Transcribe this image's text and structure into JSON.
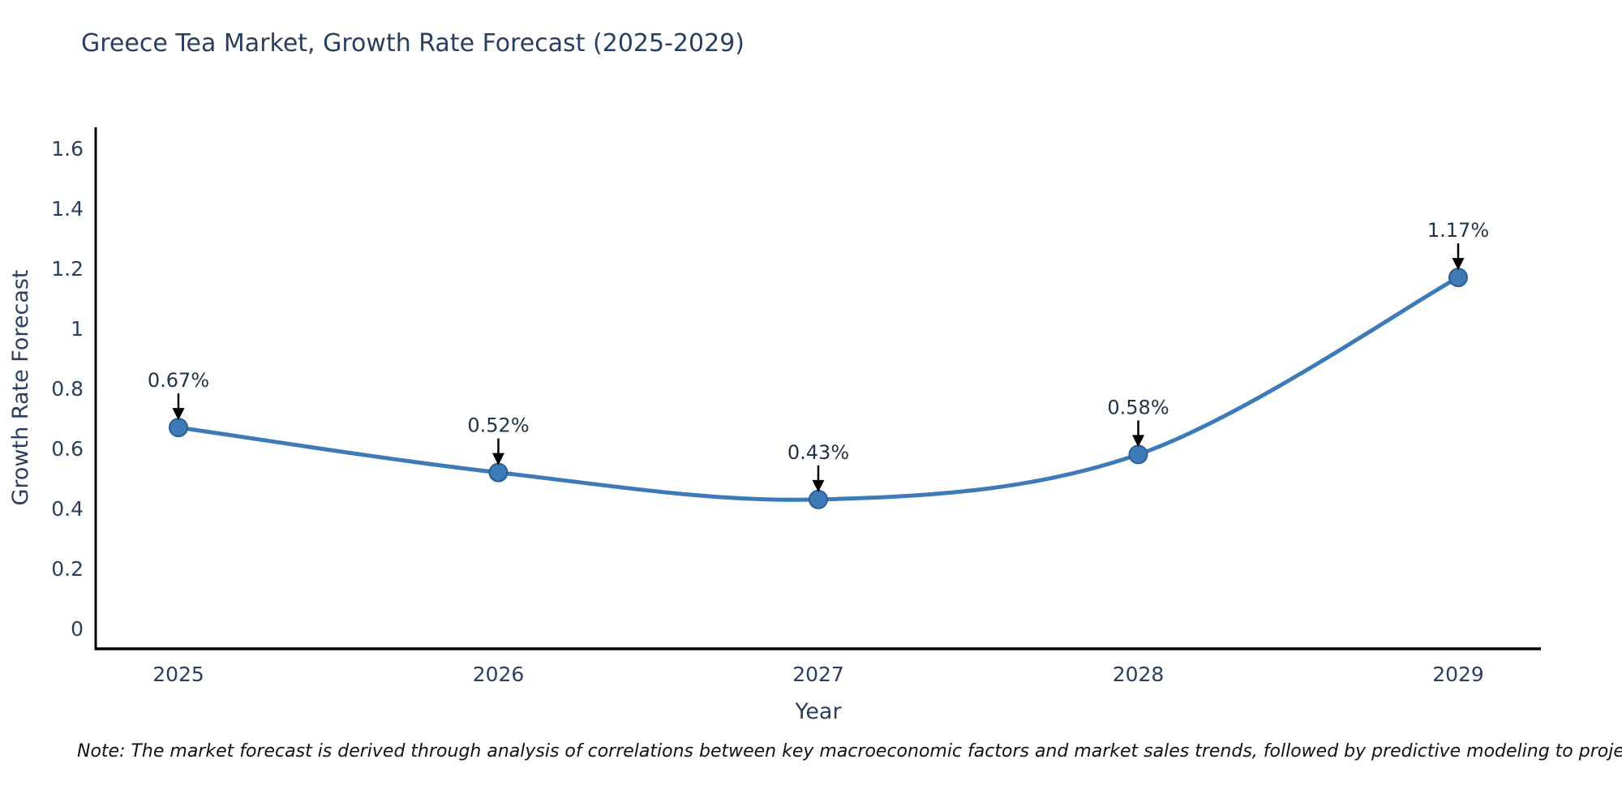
{
  "page": {
    "background": "#ffffff"
  },
  "chart_data": {
    "type": "line",
    "title": "Greece Tea Market, Growth Rate Forecast (2025-2029)",
    "xlabel": "Year",
    "ylabel": "Growth Rate Forecast",
    "categories": [
      "2025",
      "2026",
      "2027",
      "2028",
      "2029"
    ],
    "values": [
      0.67,
      0.52,
      0.43,
      0.58,
      1.17
    ],
    "point_labels": [
      "0.67%",
      "0.52%",
      "0.43%",
      "0.58%",
      "1.17%"
    ],
    "ytick_labels": [
      "0",
      "0.2",
      "0.4",
      "0.6",
      "0.8",
      "1",
      "1.2",
      "1.4",
      "1.6"
    ],
    "yticks": [
      0,
      0.2,
      0.4,
      0.6,
      0.8,
      1.0,
      1.2,
      1.4,
      1.6
    ],
    "ylim": [
      -0.07,
      1.67
    ],
    "grid": false,
    "legend_position": "none",
    "line_color": "#3d7ab8",
    "marker_color": "#3d7ab8",
    "marker_edge_color": "#2c5f94",
    "axis_color": "#000000",
    "text_color": "#2a3f5f",
    "annotation_arrow_color": "#000000"
  },
  "note": "Note: The market forecast is derived through analysis of correlations between key macroeconomic factors and market sales trends, followed by predictive modeling to project future sales performance."
}
